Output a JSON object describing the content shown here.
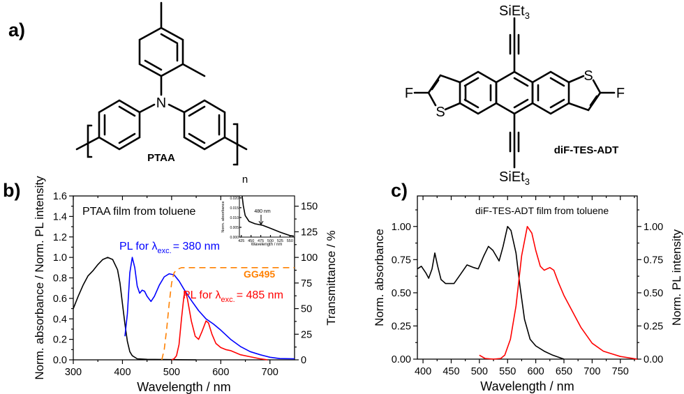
{
  "panels": {
    "a": "a)",
    "b": "b)",
    "c": "c)"
  },
  "ptaa": {
    "name": "PTAA",
    "nitrogen": "N",
    "repeat": "n"
  },
  "adt": {
    "name": "diF-TES-ADT",
    "si_top": "SiEt",
    "si_bottom": "SiEt",
    "sub3": "3",
    "fluorine_left": "F",
    "fluorine_right": "F",
    "sulfur_left": "S",
    "sulfur_right": "S"
  },
  "colors": {
    "absorbance": "#000000",
    "pl380": "#0000ff",
    "pl485": "#ff0000",
    "filter": "#ff8000",
    "pl_c": "#ff0000"
  },
  "chart_data": [
    {
      "id": "b",
      "type": "line",
      "title": "PTAA film from toluene",
      "xlabel": "Wavelength / nm",
      "ylabel": "Norm. absorbance / Norm. PL intensity",
      "y2label": "Transmittance / %",
      "xlim": [
        300,
        750
      ],
      "ylim": [
        0,
        1.6
      ],
      "y2lim": [
        0,
        160
      ],
      "xticks": [
        "300",
        "400",
        "500",
        "600",
        "700"
      ],
      "yticks": [
        "0.0",
        "0.2",
        "0.4",
        "0.6",
        "0.8",
        "1.0",
        "1.2",
        "1.4",
        "1.6"
      ],
      "y2ticks": [
        "0",
        "25",
        "50",
        "75",
        "100",
        "125",
        "150"
      ],
      "annotations": {
        "pl380": {
          "pre": "PL for λ",
          "sub": "exc.",
          "post": "= 380 nm"
        },
        "pl485": {
          "pre": "PL for λ",
          "sub": "exc.",
          "post": "= 485 nm"
        },
        "filter": "GG495"
      },
      "series": [
        {
          "name": "Absorbance",
          "axis": "left",
          "color": "#000000",
          "x": [
            300,
            310,
            320,
            330,
            340,
            350,
            360,
            370,
            380,
            390,
            395,
            400,
            405,
            410,
            415,
            420,
            430,
            450,
            500,
            550
          ],
          "y": [
            0.5,
            0.62,
            0.73,
            0.82,
            0.87,
            0.93,
            0.98,
            1.0,
            0.98,
            0.88,
            0.75,
            0.55,
            0.35,
            0.18,
            0.08,
            0.04,
            0.01,
            0.005,
            0.002,
            0.0
          ]
        },
        {
          "name": "PL for λexc. = 380 nm",
          "axis": "left",
          "color": "#0000ff",
          "x": [
            405,
            410,
            415,
            420,
            425,
            430,
            435,
            440,
            445,
            450,
            458,
            465,
            475,
            485,
            495,
            505,
            515,
            525,
            540,
            555,
            570,
            585,
            600,
            620,
            640,
            660,
            680,
            700,
            720,
            750
          ],
          "y": [
            0.23,
            0.45,
            0.85,
            1.0,
            0.9,
            0.72,
            0.65,
            0.68,
            0.67,
            0.62,
            0.57,
            0.62,
            0.73,
            0.81,
            0.84,
            0.83,
            0.77,
            0.69,
            0.58,
            0.48,
            0.4,
            0.35,
            0.29,
            0.2,
            0.13,
            0.08,
            0.05,
            0.025,
            0.012,
            0.01
          ]
        },
        {
          "name": "PL for λexc. = 485 nm",
          "axis": "left",
          "color": "#ff0000",
          "x": [
            500,
            505,
            510,
            515,
            520,
            525,
            528,
            532,
            540,
            548,
            555,
            562,
            570,
            575,
            582,
            590,
            600,
            610,
            620,
            640,
            660,
            680,
            695
          ],
          "y": [
            0,
            0.01,
            0.04,
            0.15,
            0.4,
            0.62,
            0.67,
            0.6,
            0.38,
            0.23,
            0.2,
            0.28,
            0.38,
            0.36,
            0.25,
            0.16,
            0.12,
            0.1,
            0.09,
            0.05,
            0.03,
            0.01,
            0
          ]
        },
        {
          "name": "GG495",
          "axis": "right",
          "color": "#ff8000",
          "dashed": true,
          "x": [
            480,
            485,
            490,
            495,
            500,
            505,
            510,
            520,
            600,
            750
          ],
          "y": [
            0,
            10,
            30,
            55,
            75,
            85,
            88,
            90,
            90,
            90
          ]
        }
      ],
      "inset": {
        "xlabel": "Wavelength / nm",
        "ylabel": "Norm. absorbance",
        "xlim": [
          420,
          562
        ],
        "ylim": [
          0,
          0.021
        ],
        "xticks": [
          "425",
          "450",
          "475",
          "500",
          "525",
          "550"
        ],
        "yticks": [
          "0.000",
          "0.005",
          "0.010",
          "0.015",
          "0.020"
        ],
        "annotation": "480 nm",
        "x": [
          427,
          430,
          435,
          445,
          460,
          480,
          500,
          525,
          550,
          560
        ],
        "y": [
          0.021,
          0.016,
          0.011,
          0.008,
          0.0068,
          0.006,
          0.0045,
          0.0025,
          0.0008,
          0.0005
        ]
      }
    },
    {
      "id": "c",
      "type": "line",
      "title": "diF-TES-ADT film from toluene",
      "xlabel": "Wavelength / nm",
      "ylabel": "Norm. absorbance",
      "y2label": "Norm. PL intensity",
      "xlim": [
        390,
        780
      ],
      "ylim": [
        0,
        1.23
      ],
      "y2lim": [
        0,
        1.23
      ],
      "xticks": [
        "400",
        "450",
        "500",
        "550",
        "600",
        "650",
        "700",
        "750"
      ],
      "yticks": [
        "0.00",
        "0.25",
        "0.50",
        "0.75",
        "1.00"
      ],
      "y2ticks": [
        "0.00",
        "0.25",
        "0.50",
        "0.75",
        "1.00"
      ],
      "series": [
        {
          "name": "Absorbance",
          "axis": "left",
          "color": "#000000",
          "x": [
            390,
            397,
            405,
            410,
            416,
            421,
            426,
            432,
            440,
            455,
            465,
            478,
            490,
            498,
            508,
            516,
            524,
            535,
            542,
            550,
            556,
            565,
            572,
            580,
            590,
            600,
            615,
            630,
            650
          ],
          "y": [
            0.68,
            0.7,
            0.65,
            0.61,
            0.68,
            0.8,
            0.7,
            0.6,
            0.57,
            0.57,
            0.63,
            0.71,
            0.69,
            0.68,
            0.78,
            0.85,
            0.82,
            0.74,
            0.85,
            1.0,
            0.97,
            0.8,
            0.55,
            0.3,
            0.15,
            0.1,
            0.06,
            0.03,
            0.0
          ]
        },
        {
          "name": "PL",
          "axis": "right",
          "color": "#ff0000",
          "x": [
            500,
            510,
            525,
            538,
            545,
            555,
            565,
            575,
            585,
            593,
            600,
            608,
            615,
            625,
            632,
            640,
            650,
            665,
            680,
            700,
            720,
            750,
            780
          ],
          "y": [
            0.03,
            0.005,
            0.0,
            0.005,
            0.03,
            0.15,
            0.4,
            0.78,
            1.0,
            0.95,
            0.82,
            0.7,
            0.67,
            0.69,
            0.67,
            0.58,
            0.48,
            0.36,
            0.24,
            0.12,
            0.06,
            0.02,
            0.0
          ]
        }
      ]
    }
  ]
}
